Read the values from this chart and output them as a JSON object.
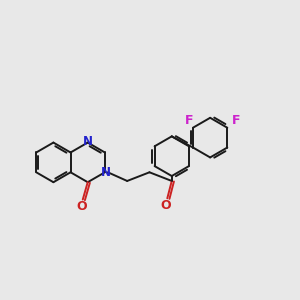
{
  "background_color": "#e8e8e8",
  "bond_color": "#1a1a1a",
  "n_color": "#2222cc",
  "o_color": "#cc2222",
  "f_color": "#cc22cc",
  "line_width": 1.4,
  "figsize": [
    3.0,
    3.0
  ],
  "dpi": 100,
  "xlim": [
    0,
    12
  ],
  "ylim": [
    0,
    12
  ]
}
